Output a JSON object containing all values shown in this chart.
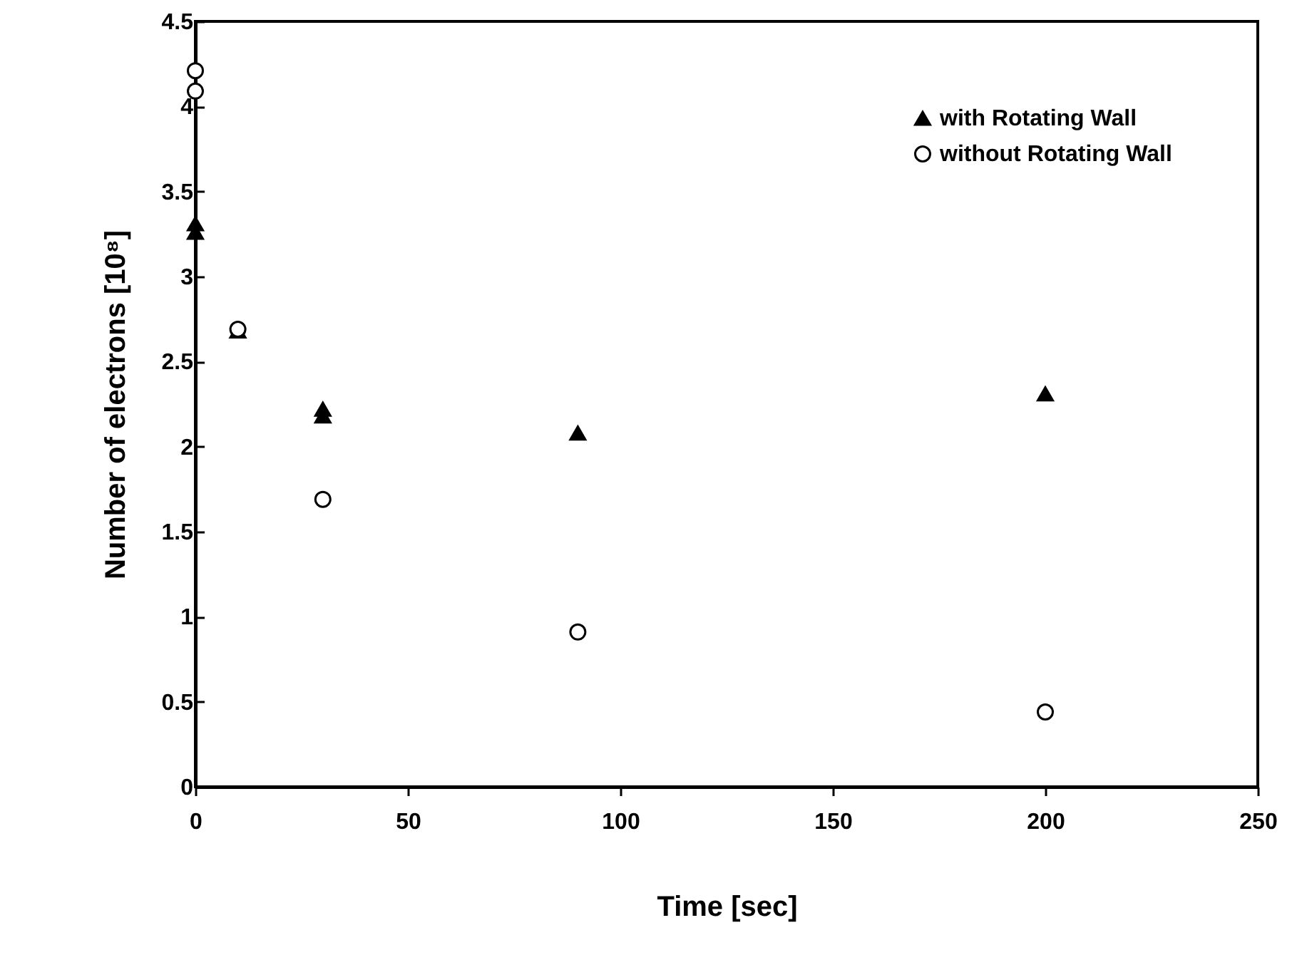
{
  "chart_data": {
    "type": "scatter",
    "xlabel": "Time [sec]",
    "ylabel": "Number of electrons [10⁸]",
    "xlim": [
      0,
      250
    ],
    "xticks": [
      0,
      50,
      100,
      150,
      200,
      250
    ],
    "ylim": [
      0,
      4.5
    ],
    "yticks": [
      0,
      0.5,
      1,
      1.5,
      2,
      2.5,
      3,
      3.5,
      4,
      4.5
    ],
    "grid": false,
    "legend": "top right",
    "series": [
      {
        "name": "with Rotating Wall",
        "color": "#000000",
        "marker": "triangle",
        "x": [
          0,
          0,
          10,
          30,
          30,
          90,
          200
        ],
        "values": [
          3.31,
          3.26,
          2.68,
          2.22,
          2.18,
          2.08,
          2.31
        ]
      },
      {
        "name": "without Rotating Wall",
        "color": "#000000",
        "marker": "circle",
        "x": [
          0,
          0,
          10,
          30,
          90,
          200
        ],
        "values": [
          4.21,
          4.09,
          2.69,
          1.69,
          0.91,
          0.44
        ]
      }
    ]
  }
}
